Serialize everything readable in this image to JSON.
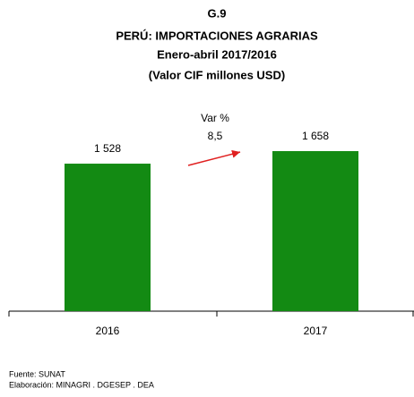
{
  "chart_data": {
    "type": "bar",
    "title": [
      "G.9",
      "PERÚ: IMPORTACIONES AGRARIAS",
      "Enero-abril 2017/2016",
      "(Valor CIF millones USD)"
    ],
    "categories": [
      "2016",
      "2017"
    ],
    "values": [
      1528,
      1658
    ],
    "value_labels": [
      "1 528",
      "1 658"
    ],
    "color": "#138a13",
    "annotations": [
      "Var %",
      "8,5"
    ],
    "source": [
      "Fuente: SUNAT",
      "Elaboración: MINAGRI . DGESEP . DEA"
    ]
  }
}
